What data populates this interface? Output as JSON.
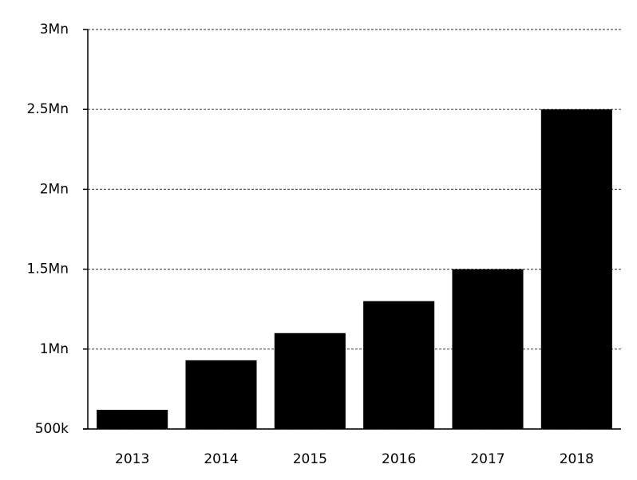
{
  "chart_data": {
    "type": "bar",
    "categories": [
      "2013",
      "2014",
      "2015",
      "2016",
      "2017",
      "2018"
    ],
    "values": [
      620000,
      930000,
      1100000,
      1300000,
      1500000,
      2500000
    ],
    "color": "#000000",
    "ylim": [
      500000,
      3000000
    ],
    "yticks": [
      {
        "value": 500000,
        "label": "500k"
      },
      {
        "value": 1000000,
        "label": "1Mn"
      },
      {
        "value": 1500000,
        "label": "1.5Mn"
      },
      {
        "value": 2000000,
        "label": "2Mn"
      },
      {
        "value": 2500000,
        "label": "2.5Mn"
      },
      {
        "value": 3000000,
        "label": "3Mn"
      }
    ],
    "grid": true
  }
}
